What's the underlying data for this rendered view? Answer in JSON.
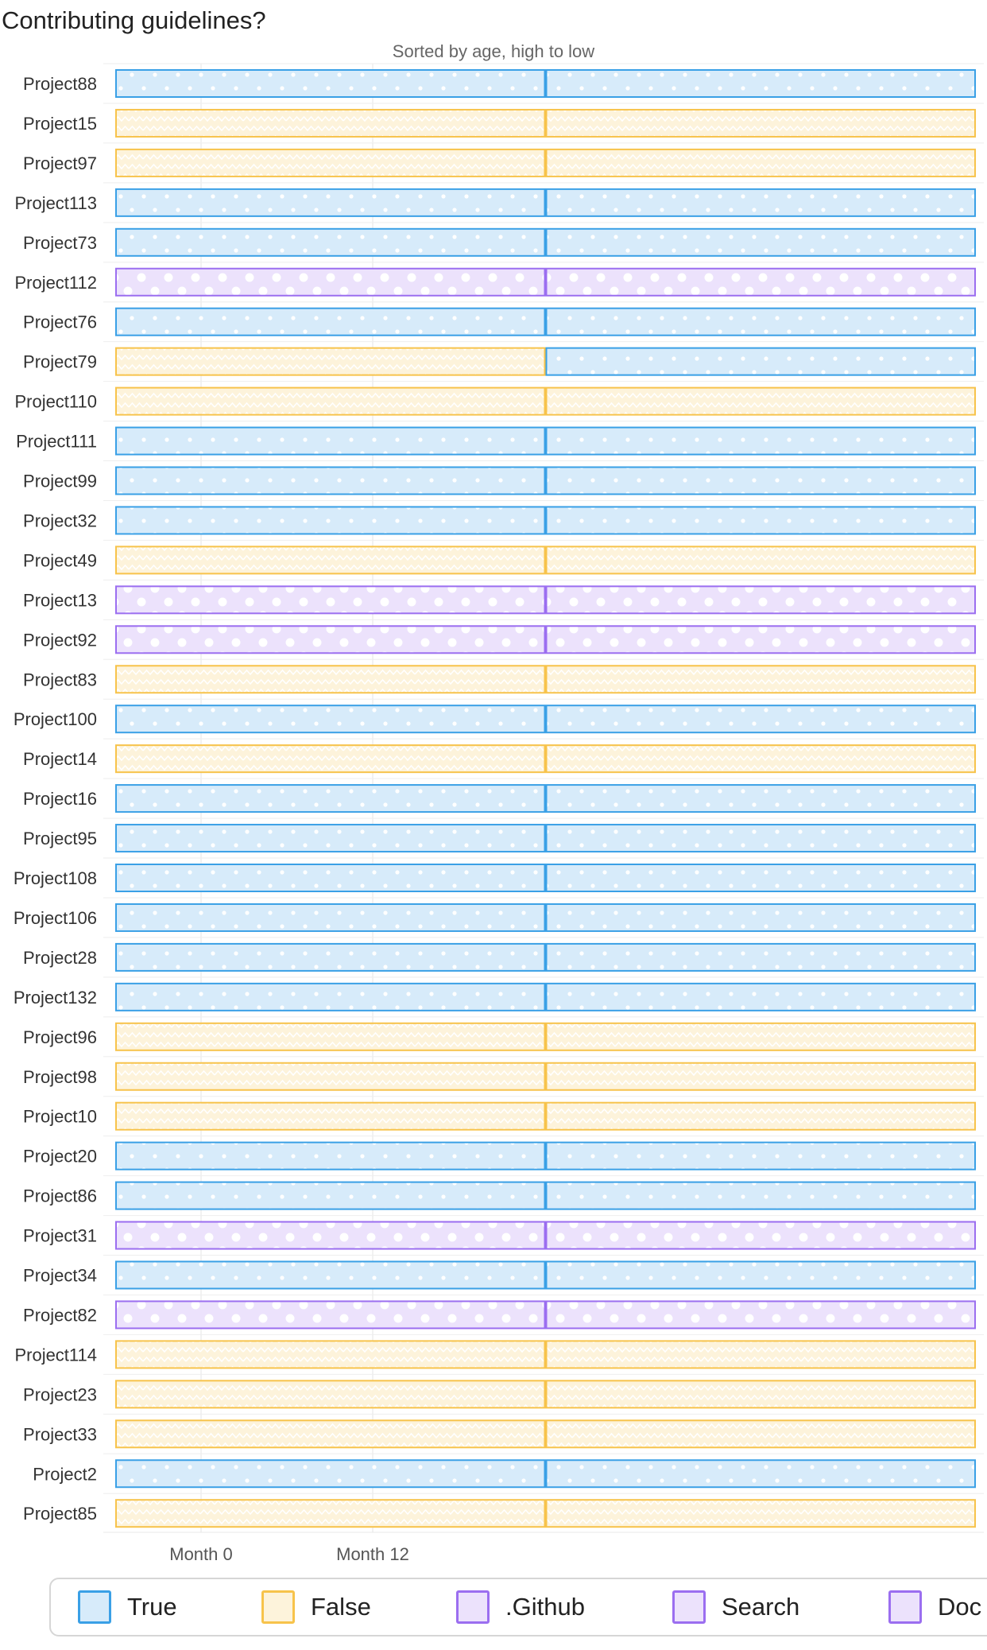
{
  "chart_data": {
    "type": "bar",
    "title": "Contributing guidelines?",
    "subtitle": "Sorted by age, high to low",
    "xlabel": "",
    "ylabel": "",
    "x_ticks": [
      "Month 0",
      "Month 12"
    ],
    "grid": true,
    "legend_position": "bottom",
    "categories_legend": [
      {
        "name": "True",
        "color": "#3aa0e6",
        "fill": "#d7ebfa",
        "pattern": "dots"
      },
      {
        "name": "False",
        "color": "#f7c34b",
        "fill": "#fdf3db",
        "pattern": "zigzag"
      },
      {
        "name": ".Github",
        "color": "#9b6ef0",
        "fill": "#ece2fc",
        "pattern": "circles"
      },
      {
        "name": "Search",
        "color": "#9b6ef0",
        "fill": "#ece2fc",
        "pattern": "circles"
      },
      {
        "name": "Doc",
        "color": "#9b6ef0",
        "fill": "#ece2fc",
        "pattern": "circles"
      }
    ],
    "rows": [
      {
        "project": "Project88",
        "segments": [
          "True",
          "True"
        ]
      },
      {
        "project": "Project15",
        "segments": [
          "False",
          "False"
        ]
      },
      {
        "project": "Project97",
        "segments": [
          "False",
          "False"
        ]
      },
      {
        "project": "Project113",
        "segments": [
          "True",
          "True"
        ]
      },
      {
        "project": "Project73",
        "segments": [
          "True",
          "True"
        ]
      },
      {
        "project": "Project112",
        "segments": [
          ".Github",
          ".Github"
        ]
      },
      {
        "project": "Project76",
        "segments": [
          "True",
          "True"
        ]
      },
      {
        "project": "Project79",
        "segments": [
          "False",
          "True"
        ]
      },
      {
        "project": "Project110",
        "segments": [
          "False",
          "False"
        ]
      },
      {
        "project": "Project111",
        "segments": [
          "True",
          "True"
        ]
      },
      {
        "project": "Project99",
        "segments": [
          "True",
          "True"
        ]
      },
      {
        "project": "Project32",
        "segments": [
          "True",
          "True"
        ]
      },
      {
        "project": "Project49",
        "segments": [
          "False",
          "False"
        ]
      },
      {
        "project": "Project13",
        "segments": [
          ".Github",
          ".Github"
        ]
      },
      {
        "project": "Project92",
        "segments": [
          ".Github",
          ".Github"
        ]
      },
      {
        "project": "Project83",
        "segments": [
          "False",
          "False"
        ]
      },
      {
        "project": "Project100",
        "segments": [
          "True",
          "True"
        ]
      },
      {
        "project": "Project14",
        "segments": [
          "False",
          "False"
        ]
      },
      {
        "project": "Project16",
        "segments": [
          "True",
          "True"
        ]
      },
      {
        "project": "Project95",
        "segments": [
          "True",
          "True"
        ]
      },
      {
        "project": "Project108",
        "segments": [
          "True",
          "True"
        ]
      },
      {
        "project": "Project106",
        "segments": [
          "True",
          "True"
        ]
      },
      {
        "project": "Project28",
        "segments": [
          "True",
          "True"
        ]
      },
      {
        "project": "Project132",
        "segments": [
          "True",
          "True"
        ]
      },
      {
        "project": "Project96",
        "segments": [
          "False",
          "False"
        ]
      },
      {
        "project": "Project98",
        "segments": [
          "False",
          "False"
        ]
      },
      {
        "project": "Project10",
        "segments": [
          "False",
          "False"
        ]
      },
      {
        "project": "Project20",
        "segments": [
          "True",
          "True"
        ]
      },
      {
        "project": "Project86",
        "segments": [
          "True",
          "True"
        ]
      },
      {
        "project": "Project31",
        "segments": [
          ".Github",
          ".Github"
        ]
      },
      {
        "project": "Project34",
        "segments": [
          "True",
          "True"
        ]
      },
      {
        "project": "Project82",
        "segments": [
          ".Github",
          ".Github"
        ]
      },
      {
        "project": "Project114",
        "segments": [
          "False",
          "False"
        ]
      },
      {
        "project": "Project23",
        "segments": [
          "False",
          "False"
        ]
      },
      {
        "project": "Project33",
        "segments": [
          "False",
          "False"
        ]
      },
      {
        "project": "Project2",
        "segments": [
          "True",
          "True"
        ]
      },
      {
        "project": "Project85",
        "segments": [
          "False",
          "False"
        ]
      }
    ]
  }
}
